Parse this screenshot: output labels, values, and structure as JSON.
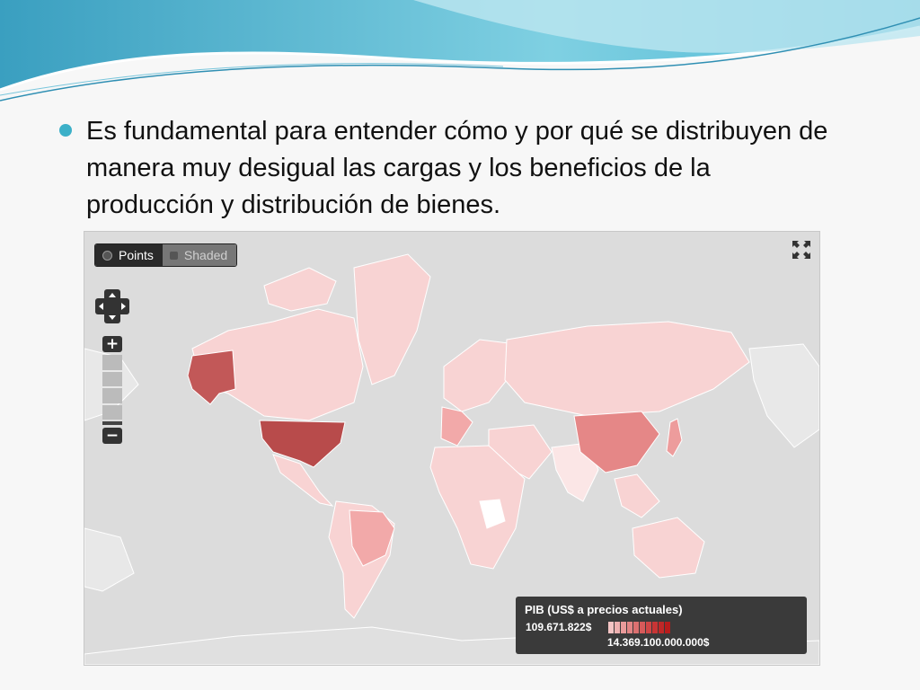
{
  "slide": {
    "bullet_text": "Es fundamental para entender cómo y por qué se distribuyen de manera muy desigual las cargas y los beneficios de la producción y distribución de bienes."
  },
  "map": {
    "modes": [
      {
        "label": "Points",
        "active": true
      },
      {
        "label": "Shaded",
        "active": false
      }
    ],
    "icons": [
      "fullscreen-icon",
      "pan-control-icon",
      "zoom-in-icon",
      "zoom-out-icon"
    ],
    "zoom_in_label": "+",
    "zoom_out_label": "−",
    "legend": {
      "title": "PIB (US$ a precios actuales)",
      "min_label": "109.671.822$",
      "max_label": "14.369.100.000.000$",
      "scale_colors": [
        "#f4c4c4",
        "#eeb0b0",
        "#e89a9a",
        "#e28585",
        "#dc7070",
        "#d55a5a",
        "#cf4646",
        "#c83535",
        "#c02828",
        "#b81c1c"
      ]
    },
    "colors": {
      "ocean": "#dcdcdc",
      "land_base": "#f8d3d3",
      "land_low": "#fbe6e6",
      "land_mid": "#f2a9a9",
      "united_states": "#b84b4b",
      "alaska": "#c25858",
      "china": "#e58787",
      "japan": "#ed9c9c",
      "no_data": "#ffffff"
    }
  }
}
